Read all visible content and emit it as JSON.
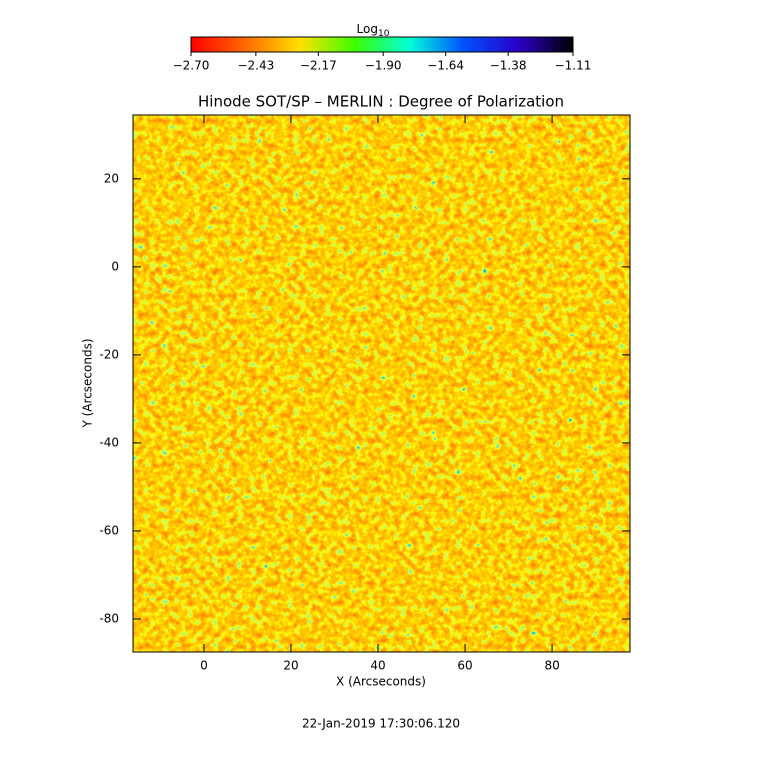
{
  "chart_data": {
    "type": "heatmap",
    "title": "Hinode SOT/SP – MERLIN : Degree of Polarization",
    "xlabel": "X (Arcseconds)",
    "ylabel": "Y (Arcseconds)",
    "xlim": [
      -16.3,
      97.9
    ],
    "ylim": [
      -87.5,
      34.5
    ],
    "xticks": [
      0,
      20,
      40,
      60,
      80
    ],
    "yticks": [
      -80,
      -60,
      -40,
      -20,
      0,
      20
    ],
    "colorbar": {
      "label": "Log",
      "label_subscript": "10",
      "range": [
        -2.7,
        -1.11
      ],
      "colors": [
        "#ff0000",
        "#ff6a00",
        "#ffe000",
        "#3cff00",
        "#00ffd8",
        "#0050ff",
        "#2a00c8",
        "#000000"
      ],
      "ticks": [
        {
          "value": -2.7,
          "label": "−2.70"
        },
        {
          "value": -2.43,
          "label": "−2.43"
        },
        {
          "value": -2.17,
          "label": "−2.17"
        },
        {
          "value": -1.9,
          "label": "−1.90"
        },
        {
          "value": -1.64,
          "label": "−1.64"
        },
        {
          "value": -1.38,
          "label": "−1.38"
        },
        {
          "value": -1.11,
          "label": "−1.11"
        }
      ]
    },
    "footer": "22-Jan-2019 17:30:06.120"
  }
}
